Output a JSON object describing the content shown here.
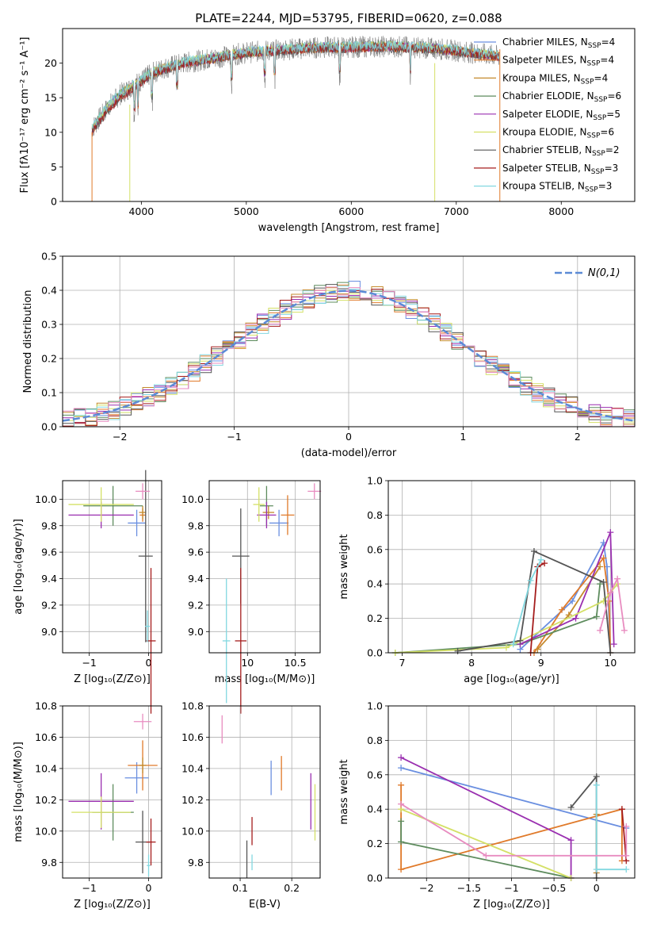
{
  "colors": {
    "Chabrier MILES": "#6a8fe0",
    "Salpeter MILES": "#e07a2a",
    "Kroupa MILES": "#c48a2c",
    "Chabrier ELODIE": "#5e8c5e",
    "Salpeter ELODIE": "#9a2fb0",
    "Kroupa ELODIE": "#d4e066",
    "Chabrier STELIB": "#555555",
    "Salpeter STELIB": "#a51d1d",
    "Kroupa STELIB": "#82d8e0",
    "pink": "#e88cc0",
    "normal": "#5b8ad6"
  },
  "chart_data": [
    {
      "id": "spectrum",
      "type": "line",
      "title": "PLATE=2244, MJD=53795, FIBERID=0620, z=0.088",
      "xlabel": "wavelength [Angstrom, rest frame]",
      "ylabel": "Flux [fλ10⁻¹⁷ erg cm⁻² s⁻¹ A⁻¹]",
      "xlim": [
        3250,
        8700
      ],
      "ylim": [
        0,
        25
      ],
      "xticks": [
        4000,
        5000,
        6000,
        7000,
        8000
      ],
      "yticks": [
        0,
        5,
        10,
        15,
        20
      ],
      "x": [
        3530,
        3600,
        3700,
        3800,
        3900,
        4000,
        4100,
        4200,
        4400,
        4600,
        4800,
        5000,
        5200,
        5400,
        5600,
        5800,
        6000,
        6200,
        6400,
        6600,
        6800,
        7000,
        7200,
        7400
      ],
      "series": [
        {
          "name": "Chabrier MILES, N_SSP=4",
          "values": [
            10.5,
            12.0,
            14.0,
            15.5,
            16.5,
            17.5,
            18.5,
            19.2,
            20.0,
            20.5,
            21.0,
            21.5,
            21.8,
            22.0,
            22.2,
            22.3,
            22.3,
            22.4,
            22.4,
            22.3,
            22.1,
            21.8,
            21.4,
            21.0
          ]
        },
        {
          "name": "Salpeter MILES, N_SSP=4",
          "values": [
            10.2,
            11.8,
            13.8,
            15.3,
            16.4,
            17.4,
            18.4,
            19.1,
            19.9,
            20.4,
            20.9,
            21.4,
            21.7,
            21.9,
            22.1,
            22.2,
            22.2,
            22.3,
            22.3,
            22.2,
            22.0,
            21.7,
            21.3,
            20.9
          ]
        },
        {
          "name": "Kroupa MILES, N_SSP=4",
          "values": [
            10.4,
            11.9,
            13.9,
            15.4,
            16.5,
            17.5,
            18.5,
            19.2,
            20.0,
            20.5,
            21.0,
            21.5,
            21.8,
            22.0,
            22.2,
            22.3,
            22.3,
            22.4,
            22.4,
            22.3,
            22.1,
            21.8,
            21.4,
            21.0
          ]
        },
        {
          "name": "Chabrier ELODIE, N_SSP=6",
          "values": [
            10.6,
            12.1,
            14.1,
            15.6,
            16.6,
            17.6,
            18.6,
            19.3,
            20.1,
            20.6,
            21.1,
            21.6,
            21.9,
            22.1,
            22.3,
            22.4,
            22.4,
            22.5,
            22.5,
            22.4,
            22.2,
            21.9,
            21.5,
            21.1
          ]
        },
        {
          "name": "Salpeter ELODIE, N_SSP=5",
          "values": [
            10.3,
            11.9,
            13.9,
            15.4,
            16.5,
            17.5,
            18.5,
            19.2,
            20.0,
            20.5,
            21.0,
            21.5,
            21.8,
            22.0,
            22.2,
            22.3,
            22.3,
            22.4,
            22.4,
            22.3,
            22.1,
            21.8,
            21.4,
            21.0
          ]
        },
        {
          "name": "Kroupa ELODIE, N_SSP=6",
          "values": [
            10.5,
            12.0,
            14.0,
            15.5,
            16.6,
            17.6,
            18.6,
            19.3,
            20.1,
            20.6,
            21.1,
            21.6,
            21.9,
            22.1,
            22.3,
            22.4,
            22.4,
            22.5,
            22.5,
            22.4,
            22.2,
            21.9,
            21.5,
            21.1
          ]
        },
        {
          "name": "Chabrier STELIB, N_SSP=2",
          "values": [
            10.0,
            11.5,
            13.5,
            15.0,
            16.0,
            17.2,
            18.2,
            19.0,
            19.8,
            20.3,
            20.8,
            21.3,
            21.6,
            21.8,
            22.0,
            22.1,
            22.1,
            22.2,
            22.2,
            22.1,
            21.9,
            21.6,
            21.2,
            20.8
          ]
        },
        {
          "name": "Salpeter STELIB, N_SSP=3",
          "values": [
            10.1,
            11.6,
            13.6,
            15.1,
            16.1,
            17.3,
            18.3,
            19.1,
            19.9,
            20.4,
            20.9,
            21.4,
            21.7,
            21.9,
            22.1,
            22.2,
            22.2,
            22.3,
            22.3,
            22.2,
            22.0,
            21.7,
            21.3,
            20.9
          ]
        },
        {
          "name": "Kroupa STELIB, N_SSP=3",
          "values": [
            10.7,
            12.2,
            14.2,
            15.7,
            16.7,
            17.7,
            18.7,
            19.4,
            20.2,
            20.7,
            21.2,
            21.7,
            22.0,
            22.2,
            22.4,
            22.5,
            22.5,
            22.6,
            22.6,
            22.5,
            22.3,
            22.0,
            21.6,
            21.2
          ]
        }
      ],
      "observed": {
        "color": "#777777",
        "noise": 1.6
      },
      "legend": "top-right",
      "grid": false
    },
    {
      "id": "residuals",
      "type": "line",
      "xlabel": "(data-model)/error",
      "ylabel": "Normed distribution",
      "xlim": [
        -2.5,
        2.5
      ],
      "ylim": [
        0,
        0.5
      ],
      "xticks": [
        -2,
        -1,
        0,
        1,
        2
      ],
      "yticks": [
        0.0,
        0.1,
        0.2,
        0.3,
        0.4,
        0.5
      ],
      "legend_label": "N(0,1)",
      "grid": true,
      "bin_width": 0.1
    },
    {
      "id": "age-Z",
      "type": "scatter",
      "xlabel": "Z [log₁₀(Z/Z⊙)]",
      "ylabel": "age  [log₁₀(age/yr)]",
      "xlim": [
        -1.45,
        0.22
      ],
      "ylim": [
        8.84,
        10.14
      ],
      "xticks": [
        -1,
        0
      ],
      "yticks": [
        9.0,
        9.2,
        9.4,
        9.6,
        9.8,
        10.0
      ],
      "grid": true,
      "points": [
        {
          "key": "Chabrier MILES",
          "x": -0.2,
          "y": 9.82,
          "xerr": 0.15,
          "yerr": 0.1
        },
        {
          "key": "Salpeter MILES",
          "x": -0.1,
          "y": 9.88,
          "xerr": 0.05,
          "yerr": 0.05
        },
        {
          "key": "Kroupa MILES",
          "x": -0.1,
          "y": 9.9,
          "xerr": 0.06,
          "yerr": 0.05
        },
        {
          "key": "Chabrier ELODIE",
          "x": -0.6,
          "y": 9.95,
          "xerr": 0.5,
          "yerr": 0.15
        },
        {
          "key": "Salpeter ELODIE",
          "x": -0.8,
          "y": 9.88,
          "xerr": 0.55,
          "yerr": 0.1
        },
        {
          "key": "Kroupa ELODIE",
          "x": -0.8,
          "y": 9.96,
          "xerr": 0.55,
          "yerr": 0.13
        },
        {
          "key": "Chabrier STELIB",
          "x": -0.05,
          "y": 9.57,
          "xerr": 0.12,
          "yerr": 0.65
        },
        {
          "key": "Salpeter STELIB",
          "x": 0.04,
          "y": 8.93,
          "xerr": 0.08,
          "yerr": 0.55
        },
        {
          "key": "Kroupa STELIB",
          "x": -0.02,
          "y": 9.04,
          "xerr": 0.04,
          "yerr": 0.12
        },
        {
          "key": "pink",
          "x": -0.1,
          "y": 10.06,
          "xerr": 0.12,
          "yerr": 0.06
        }
      ]
    },
    {
      "id": "age-mass",
      "type": "scatter",
      "xlabel": "mass [log₁₀(M/M⊙)]",
      "ylabel": "",
      "xlim": [
        9.6,
        10.76
      ],
      "ylim": [
        8.84,
        10.14
      ],
      "xticks": [
        10.0,
        10.5
      ],
      "yticks": [
        9.0,
        9.2,
        9.4,
        9.6,
        9.8,
        10.0
      ],
      "grid": true,
      "points": [
        {
          "key": "Chabrier MILES",
          "x": 10.33,
          "y": 9.82,
          "xerr": 0.1,
          "yerr": 0.1
        },
        {
          "key": "Salpeter MILES",
          "x": 10.42,
          "y": 9.88,
          "xerr": 0.07,
          "yerr": 0.15
        },
        {
          "key": "Kroupa MILES",
          "x": 10.22,
          "y": 9.9,
          "xerr": 0.06,
          "yerr": 0.05
        },
        {
          "key": "Chabrier ELODIE",
          "x": 10.2,
          "y": 9.95,
          "xerr": 0.07,
          "yerr": 0.15
        },
        {
          "key": "Salpeter ELODIE",
          "x": 10.2,
          "y": 9.88,
          "xerr": 0.1,
          "yerr": 0.1
        },
        {
          "key": "Kroupa ELODIE",
          "x": 10.12,
          "y": 9.96,
          "xerr": 0.06,
          "yerr": 0.13
        },
        {
          "key": "Chabrier STELIB",
          "x": 9.93,
          "y": 9.57,
          "xerr": 0.09,
          "yerr": 0.36
        },
        {
          "key": "Salpeter STELIB",
          "x": 9.93,
          "y": 8.93,
          "xerr": 0.06,
          "yerr": 0.55
        },
        {
          "key": "Kroupa STELIB",
          "x": 9.78,
          "y": 8.93,
          "xerr": 0.04,
          "yerr": 0.47
        },
        {
          "key": "pink",
          "x": 10.7,
          "y": 10.06,
          "xerr": 0.07,
          "yerr": 0.06
        }
      ]
    },
    {
      "id": "weight-age",
      "type": "line",
      "xlabel": "age  [log₁₀(age/yr)]",
      "ylabel": "mass weight",
      "xlim": [
        6.8,
        10.35
      ],
      "ylim": [
        0,
        1
      ],
      "xticks": [
        7,
        8,
        9,
        10
      ],
      "yticks": [
        0.0,
        0.2,
        0.4,
        0.6,
        0.8,
        1.0
      ],
      "grid": true,
      "series": [
        {
          "key": "Chabrier MILES",
          "x": [
            8.7,
            9.45,
            9.9,
            9.95,
            10.0
          ],
          "y": [
            0.02,
            0.3,
            0.64,
            0.5,
            0.0
          ]
        },
        {
          "key": "Salpeter MILES",
          "x": [
            8.9,
            9.3,
            9.9,
            9.98,
            10.0
          ],
          "y": [
            0.0,
            0.25,
            0.55,
            0.3,
            0.0
          ]
        },
        {
          "key": "Kroupa MILES",
          "x": [
            8.95,
            9.4,
            9.85
          ],
          "y": [
            0.02,
            0.22,
            0.5
          ]
        },
        {
          "key": "Chabrier ELODIE",
          "x": [
            6.9,
            8.7,
            9.8,
            9.85
          ],
          "y": [
            0.0,
            0.05,
            0.21,
            0.4
          ]
        },
        {
          "key": "Salpeter ELODIE",
          "x": [
            8.7,
            9.5,
            10.0,
            10.05
          ],
          "y": [
            0.05,
            0.2,
            0.7,
            0.05
          ]
        },
        {
          "key": "Kroupa ELODIE",
          "x": [
            6.9,
            8.5,
            9.9,
            10.1
          ],
          "y": [
            0.0,
            0.03,
            0.3,
            0.4
          ]
        },
        {
          "key": "Chabrier STELIB",
          "x": [
            7.8,
            8.7,
            8.9,
            9.9,
            10.0
          ],
          "y": [
            0.01,
            0.07,
            0.59,
            0.41,
            0.0
          ]
        },
        {
          "key": "Salpeter STELIB",
          "x": [
            8.85,
            8.95,
            9.05
          ],
          "y": [
            0.0,
            0.5,
            0.52
          ]
        },
        {
          "key": "Kroupa STELIB",
          "x": [
            8.6,
            8.85,
            9.0
          ],
          "y": [
            0.05,
            0.42,
            0.54
          ]
        },
        {
          "key": "pink",
          "x": [
            9.85,
            10.0,
            10.1,
            10.2
          ],
          "y": [
            0.13,
            0.35,
            0.43,
            0.13
          ]
        }
      ]
    },
    {
      "id": "mass-Z",
      "type": "scatter",
      "xlabel": "Z [log₁₀(Z/Z⊙)]",
      "ylabel": "mass [log₁₀(M/M⊙)]",
      "xlim": [
        -1.45,
        0.22
      ],
      "ylim": [
        9.7,
        10.8
      ],
      "xticks": [
        -1,
        0
      ],
      "yticks": [
        9.8,
        10.0,
        10.2,
        10.4,
        10.6,
        10.8
      ],
      "grid": true,
      "points": [
        {
          "key": "Chabrier MILES",
          "x": -0.2,
          "y": 10.34,
          "xerr": 0.2,
          "yerr": 0.1
        },
        {
          "key": "Salpeter MILES",
          "x": -0.1,
          "y": 10.42,
          "xerr": 0.25,
          "yerr": 0.16
        },
        {
          "key": "Kroupa MILES",
          "x": -0.1,
          "y": 10.42,
          "xerr": 0.06,
          "yerr": 0.05
        },
        {
          "key": "Chabrier ELODIE",
          "x": -0.6,
          "y": 10.12,
          "xerr": 0.35,
          "yerr": 0.18
        },
        {
          "key": "Salpeter ELODIE",
          "x": -0.8,
          "y": 10.19,
          "xerr": 0.55,
          "yerr": 0.18
        },
        {
          "key": "Kroupa ELODIE",
          "x": -0.8,
          "y": 10.12,
          "xerr": 0.5,
          "yerr": 0.1
        },
        {
          "key": "Chabrier STELIB",
          "x": -0.1,
          "y": 9.93,
          "xerr": 0.12,
          "yerr": 0.2
        },
        {
          "key": "Salpeter STELIB",
          "x": 0.04,
          "y": 9.93,
          "xerr": 0.08,
          "yerr": 0.15
        },
        {
          "key": "Kroupa STELIB",
          "x": 0.0,
          "y": 9.78,
          "xerr": 0.03,
          "yerr": 0.07
        },
        {
          "key": "pink",
          "x": -0.1,
          "y": 10.7,
          "xerr": 0.15,
          "yerr": 0.05
        }
      ]
    },
    {
      "id": "mass-EBV",
      "type": "scatter",
      "xlabel": "E(B-V)",
      "ylabel": "",
      "xlim": [
        0.04,
        0.255
      ],
      "ylim": [
        9.7,
        10.8
      ],
      "xticks": [
        0.1,
        0.2
      ],
      "yticks": [
        9.8,
        10.0,
        10.2,
        10.4,
        10.6,
        10.8
      ],
      "grid": true,
      "points": [
        {
          "key": "Chabrier MILES",
          "x": 0.16,
          "y": 10.34,
          "xerr": 0.0,
          "yerr": 0.11
        },
        {
          "key": "Salpeter MILES",
          "x": 0.18,
          "y": 10.37,
          "xerr": 0.0,
          "yerr": 0.11
        },
        {
          "key": "Salpeter ELODIE",
          "x": 0.237,
          "y": 10.19,
          "xerr": 0.0,
          "yerr": 0.18
        },
        {
          "key": "Kroupa ELODIE",
          "x": 0.245,
          "y": 10.12,
          "xerr": 0.0,
          "yerr": 0.18
        },
        {
          "key": "Chabrier STELIB",
          "x": 0.113,
          "y": 9.82,
          "xerr": 0.0,
          "yerr": 0.12
        },
        {
          "key": "Salpeter STELIB",
          "x": 0.123,
          "y": 10.0,
          "xerr": 0.0,
          "yerr": 0.09
        },
        {
          "key": "Kroupa STELIB",
          "x": 0.123,
          "y": 9.8,
          "xerr": 0.0,
          "yerr": 0.05
        },
        {
          "key": "pink",
          "x": 0.065,
          "y": 10.65,
          "xerr": 0.0,
          "yerr": 0.09
        }
      ]
    },
    {
      "id": "weight-Z",
      "type": "line",
      "xlabel": "Z [log₁₀(Z/Z⊙)]",
      "ylabel": "mass weight",
      "xlim": [
        -2.45,
        0.45
      ],
      "ylim": [
        0,
        1
      ],
      "xticks": [
        -2.0,
        -1.5,
        -1.0,
        -0.5,
        0.0
      ],
      "yticks": [
        0.0,
        0.2,
        0.4,
        0.6,
        0.8,
        1.0
      ],
      "grid": true,
      "series": [
        {
          "key": "Chabrier MILES",
          "x": [
            -2.3,
            0.35
          ],
          "y": [
            0.64,
            0.29
          ]
        },
        {
          "key": "Salpeter MILES",
          "x": [
            -2.3,
            -2.3,
            0.3,
            0.3
          ],
          "y": [
            0.54,
            0.05,
            0.4,
            0.1
          ]
        },
        {
          "key": "Kroupa MILES",
          "x": [
            0.0,
            0.0
          ],
          "y": [
            0.37,
            0.03
          ]
        },
        {
          "key": "Chabrier ELODIE",
          "x": [
            -2.3,
            -2.3,
            -0.3
          ],
          "y": [
            0.33,
            0.21,
            0.0
          ]
        },
        {
          "key": "Salpeter ELODIE",
          "x": [
            -2.3,
            -0.3,
            -0.3
          ],
          "y": [
            0.7,
            0.22,
            0.0
          ]
        },
        {
          "key": "Kroupa ELODIE",
          "x": [
            -2.3,
            -0.3
          ],
          "y": [
            0.4,
            0.0
          ]
        },
        {
          "key": "Chabrier STELIB",
          "x": [
            -0.3,
            0.0,
            0.0
          ],
          "y": [
            0.41,
            0.59,
            0.0
          ]
        },
        {
          "key": "Salpeter STELIB",
          "x": [
            0.3,
            0.35
          ],
          "y": [
            0.4,
            0.1
          ]
        },
        {
          "key": "Kroupa STELIB",
          "x": [
            0.0,
            0.0,
            0.35
          ],
          "y": [
            0.54,
            0.05,
            0.05
          ]
        },
        {
          "key": "pink",
          "x": [
            -2.3,
            -1.3,
            0.35,
            0.35
          ],
          "y": [
            0.43,
            0.13,
            0.13,
            0.3
          ]
        }
      ]
    }
  ]
}
